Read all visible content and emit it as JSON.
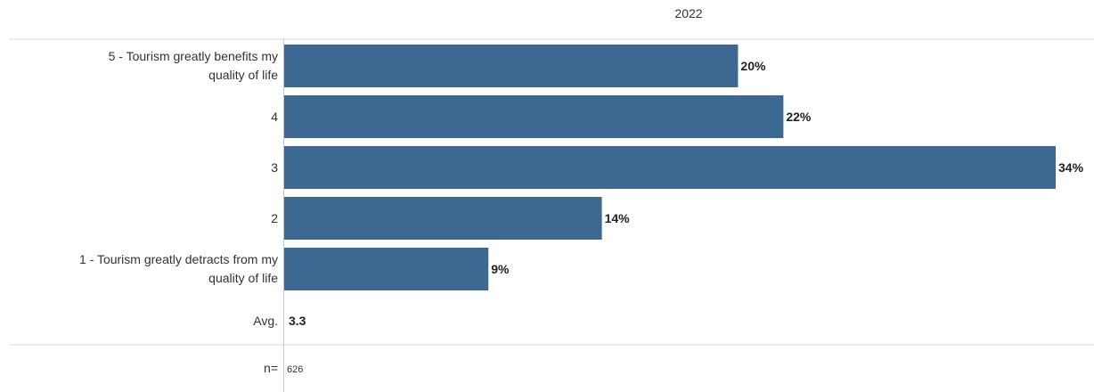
{
  "chart_data": {
    "type": "bar",
    "orientation": "horizontal",
    "column_header": "2022",
    "categories": [
      "5 - Tourism greatly benefits my quality of life",
      "4",
      "3",
      "2",
      "1 - Tourism greatly detracts from my quality of life"
    ],
    "values": [
      20,
      22,
      34,
      14,
      9
    ],
    "value_labels": [
      "20%",
      "22%",
      "34%",
      "14%",
      "9%"
    ],
    "xlim": [
      0,
      34
    ],
    "grid": false,
    "avg_label": "Avg.",
    "avg_value": "3.3",
    "n_label": "n=",
    "n_value": "626",
    "bar_color": "#3d6891"
  }
}
